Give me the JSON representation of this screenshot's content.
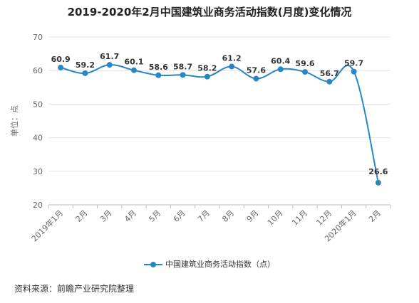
{
  "colors": {
    "line": "#2a86c2",
    "grid": "#e2e2e2",
    "axis": "#bfbfbf"
  },
  "title": "2019-2020年2月中国建筑业商务活动指数(月度)变化情况",
  "source": "资料来源：前瞻产业研究院整理",
  "chart_data": {
    "type": "line",
    "title": "2019-2020年2月中国建筑业商务活动指数(月度)变化情况",
    "xlabel": "",
    "ylabel": "单位：点",
    "ylim": [
      20,
      70
    ],
    "yticks": [
      20,
      30,
      40,
      50,
      60,
      70
    ],
    "grid": true,
    "legend_position": "bottom",
    "categories": [
      "2019年1月",
      "2月",
      "3月",
      "4月",
      "5月",
      "6月",
      "7月",
      "8月",
      "9月",
      "10月",
      "11月",
      "12月",
      "2020年1月",
      "2月"
    ],
    "series": [
      {
        "name": "中国建筑业商务活动指数（点）",
        "values": [
          60.9,
          59.2,
          61.7,
          60.1,
          58.6,
          58.7,
          58.2,
          61.2,
          57.6,
          60.4,
          59.6,
          56.7,
          59.7,
          26.6
        ]
      }
    ]
  }
}
